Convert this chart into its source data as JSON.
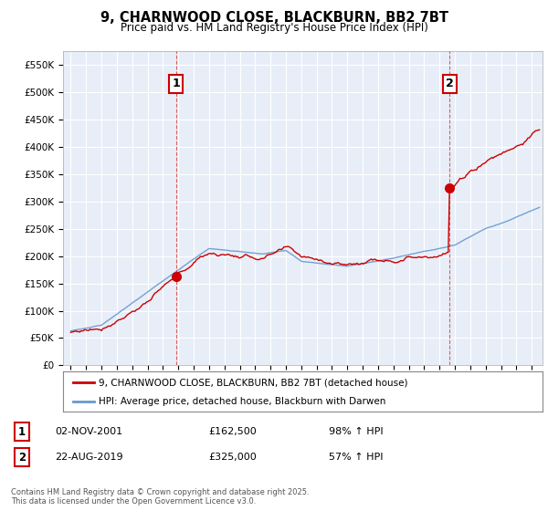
{
  "title": "9, CHARNWOOD CLOSE, BLACKBURN, BB2 7BT",
  "subtitle": "Price paid vs. HM Land Registry's House Price Index (HPI)",
  "legend_line1": "9, CHARNWOOD CLOSE, BLACKBURN, BB2 7BT (detached house)",
  "legend_line2": "HPI: Average price, detached house, Blackburn with Darwen",
  "sale1_date": "02-NOV-2001",
  "sale1_price": "£162,500",
  "sale1_hpi": "98% ↑ HPI",
  "sale2_date": "22-AUG-2019",
  "sale2_price": "£325,000",
  "sale2_hpi": "57% ↑ HPI",
  "vline1_x": 2001.84,
  "vline2_x": 2019.64,
  "sale1_marker_x": 2001.84,
  "sale1_marker_y": 162500,
  "sale2_marker_x": 2019.64,
  "sale2_marker_y": 325000,
  "ylim": [
    0,
    575000
  ],
  "xlim_start": 1994.5,
  "xlim_end": 2025.7,
  "red_color": "#cc0000",
  "blue_color": "#6699cc",
  "vline_color": "#cc0000",
  "chart_bg_color": "#e8eef8",
  "background_color": "#ffffff",
  "grid_color": "#ffffff",
  "footer_text": "Contains HM Land Registry data © Crown copyright and database right 2025.\nThis data is licensed under the Open Government Licence v3.0.",
  "yticks": [
    0,
    50000,
    100000,
    150000,
    200000,
    250000,
    300000,
    350000,
    400000,
    450000,
    500000,
    550000
  ],
  "ytick_labels": [
    "£0",
    "£50K",
    "£100K",
    "£150K",
    "£200K",
    "£250K",
    "£300K",
    "£350K",
    "£400K",
    "£450K",
    "£500K",
    "£550K"
  ]
}
